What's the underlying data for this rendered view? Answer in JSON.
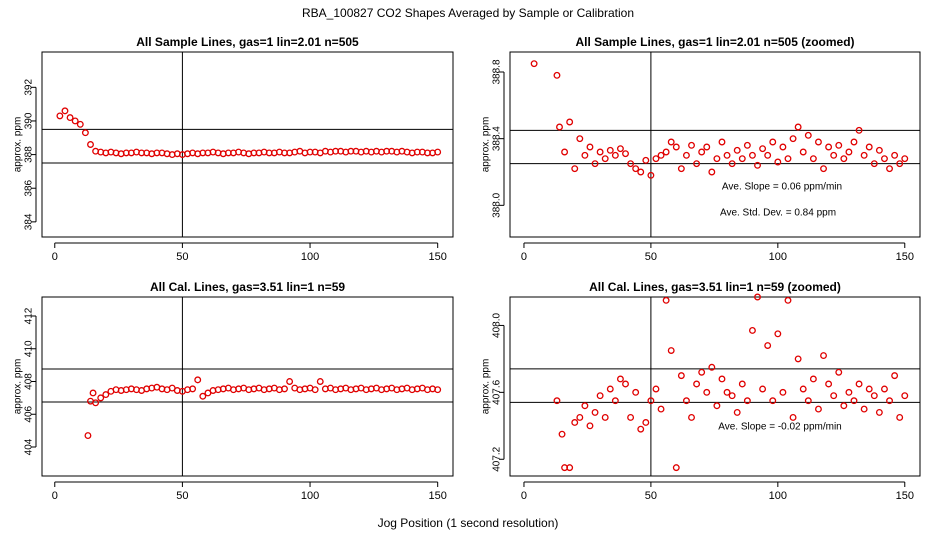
{
  "page": {
    "title": "RBA_100827  CO2 Shapes Averaged by Sample or Calibration",
    "xlabel": "Jog Position (1 second resolution)"
  },
  "chart_data": [
    {
      "type": "scatter",
      "title": "All Sample Lines, gas=1 lin=2.01 n=505",
      "ylabel": "approx. ppm",
      "color": "#e00000",
      "xlim": [
        -5,
        156
      ],
      "ylim": [
        383.1,
        394.1
      ],
      "xticks": [
        0,
        50,
        100,
        150
      ],
      "yticks": [
        384,
        386,
        388,
        390,
        392
      ],
      "hlines": [
        389.5,
        387.5
      ],
      "vlines": [
        50
      ],
      "annotations": [],
      "x": [
        2,
        4,
        6,
        8,
        10,
        12,
        14,
        16,
        18,
        20,
        22,
        24,
        26,
        28,
        30,
        32,
        34,
        36,
        38,
        40,
        42,
        44,
        46,
        48,
        50,
        52,
        54,
        56,
        58,
        60,
        62,
        64,
        66,
        68,
        70,
        72,
        74,
        76,
        78,
        80,
        82,
        84,
        86,
        88,
        90,
        92,
        94,
        96,
        98,
        100,
        102,
        104,
        106,
        108,
        110,
        112,
        114,
        116,
        118,
        120,
        122,
        124,
        126,
        128,
        130,
        132,
        134,
        136,
        138,
        140,
        142,
        144,
        146,
        148,
        150
      ],
      "values": [
        390.3,
        390.6,
        390.2,
        390.0,
        389.8,
        389.3,
        388.6,
        388.2,
        388.15,
        388.1,
        388.15,
        388.1,
        388.05,
        388.1,
        388.1,
        388.15,
        388.1,
        388.1,
        388.05,
        388.1,
        388.1,
        388.05,
        388.0,
        388.05,
        388.0,
        388.05,
        388.1,
        388.05,
        388.1,
        388.1,
        388.15,
        388.1,
        388.05,
        388.1,
        388.1,
        388.15,
        388.1,
        388.05,
        388.1,
        388.1,
        388.15,
        388.1,
        388.1,
        388.15,
        388.1,
        388.1,
        388.15,
        388.2,
        388.1,
        388.15,
        388.15,
        388.1,
        388.2,
        388.15,
        388.2,
        388.2,
        388.15,
        388.2,
        388.2,
        388.15,
        388.2,
        388.15,
        388.2,
        388.15,
        388.2,
        388.2,
        388.15,
        388.2,
        388.15,
        388.1,
        388.15,
        388.15,
        388.1,
        388.1,
        388.15
      ]
    },
    {
      "type": "scatter",
      "title": "All Sample Lines, gas=1 lin=2.01 n=505 (zoomed)",
      "ylabel": "approx. ppm",
      "color": "#e00000",
      "xlim": [
        -5.5,
        156
      ],
      "ylim": [
        387.81,
        388.92
      ],
      "xticks": [
        0,
        50,
        100,
        150
      ],
      "yticks": [
        {
          "value": 388,
          "label": "388.0"
        },
        388.4,
        388.8
      ],
      "hlines": [
        388.45,
        388.25
      ],
      "vlines": [
        50
      ],
      "annotations": [
        "Ave. Slope =  0.06  ppm/min",
        "Ave. Std. Dev. =  0.84  ppm"
      ],
      "x": [
        4,
        13,
        14,
        16,
        18,
        20,
        22,
        24,
        26,
        28,
        30,
        32,
        34,
        36,
        38,
        40,
        42,
        44,
        46,
        48,
        50,
        52,
        54,
        56,
        58,
        60,
        62,
        64,
        66,
        68,
        70,
        72,
        74,
        76,
        78,
        80,
        82,
        84,
        86,
        88,
        90,
        92,
        94,
        96,
        98,
        100,
        102,
        104,
        106,
        108,
        110,
        112,
        114,
        116,
        118,
        120,
        122,
        124,
        126,
        128,
        130,
        132,
        134,
        136,
        138,
        140,
        142,
        144,
        146,
        148,
        150
      ],
      "values": [
        388.85,
        388.78,
        388.47,
        388.32,
        388.5,
        388.22,
        388.4,
        388.3,
        388.35,
        388.25,
        388.32,
        388.28,
        388.33,
        388.3,
        388.34,
        388.31,
        388.25,
        388.22,
        388.2,
        388.27,
        388.18,
        388.28,
        388.3,
        388.32,
        388.38,
        388.35,
        388.22,
        388.3,
        388.36,
        388.25,
        388.32,
        388.35,
        388.2,
        388.28,
        388.38,
        388.3,
        388.25,
        388.33,
        388.28,
        388.36,
        388.3,
        388.24,
        388.34,
        388.3,
        388.38,
        388.26,
        388.35,
        388.28,
        388.4,
        388.47,
        388.32,
        388.42,
        388.28,
        388.38,
        388.22,
        388.35,
        388.3,
        388.36,
        388.28,
        388.32,
        388.38,
        388.45,
        388.3,
        388.35,
        388.25,
        388.33,
        388.28,
        388.22,
        388.3,
        388.25,
        388.28
      ]
    },
    {
      "type": "scatter",
      "title": "All Cal. Lines, gas=3.51 lin=1 n=59",
      "ylabel": "approx. ppm",
      "color": "#e00000",
      "xlim": [
        -5,
        156
      ],
      "ylim": [
        402.23,
        413.16
      ],
      "xticks": [
        0,
        50,
        100,
        150
      ],
      "yticks": [
        404,
        406,
        408,
        410,
        412
      ],
      "hlines": [
        408.76,
        406.75
      ],
      "vlines": [
        50
      ],
      "annotations": [],
      "x": [
        13,
        14,
        15,
        16,
        18,
        20,
        22,
        24,
        26,
        28,
        30,
        32,
        34,
        36,
        38,
        40,
        42,
        44,
        46,
        48,
        50,
        52,
        54,
        56,
        58,
        60,
        62,
        64,
        66,
        68,
        70,
        72,
        74,
        76,
        78,
        80,
        82,
        84,
        86,
        88,
        90,
        92,
        94,
        96,
        98,
        100,
        102,
        104,
        106,
        108,
        110,
        112,
        114,
        116,
        118,
        120,
        122,
        124,
        126,
        128,
        130,
        132,
        134,
        136,
        138,
        140,
        142,
        144,
        146,
        148,
        150
      ],
      "values": [
        404.7,
        406.8,
        407.3,
        406.7,
        407.0,
        407.2,
        407.4,
        407.5,
        407.45,
        407.5,
        407.55,
        407.5,
        407.45,
        407.55,
        407.6,
        407.65,
        407.55,
        407.5,
        407.6,
        407.45,
        407.4,
        407.5,
        407.55,
        408.1,
        407.1,
        407.3,
        407.45,
        407.5,
        407.55,
        407.6,
        407.5,
        407.55,
        407.6,
        407.5,
        407.55,
        407.6,
        407.5,
        407.55,
        407.6,
        407.5,
        407.55,
        408.0,
        407.6,
        407.5,
        407.55,
        407.6,
        407.5,
        408.0,
        407.55,
        407.6,
        407.5,
        407.55,
        407.6,
        407.5,
        407.55,
        407.6,
        407.5,
        407.55,
        407.6,
        407.5,
        407.55,
        407.6,
        407.5,
        407.55,
        407.6,
        407.5,
        407.55,
        407.6,
        407.5,
        407.55,
        407.5
      ]
    },
    {
      "type": "scatter",
      "title": "All Cal. Lines, gas=3.51 lin=1 n=59 (zoomed)",
      "ylabel": "approx. ppm",
      "color": "#e00000",
      "xlim": [
        -5.5,
        156
      ],
      "ylim": [
        407.1,
        408.17
      ],
      "xticks": [
        0,
        50,
        100,
        150
      ],
      "yticks": [
        407.2,
        407.6,
        {
          "value": 408,
          "label": "408.0"
        }
      ],
      "hlines": [
        407.74,
        407.54
      ],
      "vlines": [
        50
      ],
      "annotations": [
        "Ave. Slope =  -0.02  ppm/min"
      ],
      "x": [
        13,
        15,
        16,
        18,
        20,
        22,
        24,
        26,
        28,
        30,
        32,
        34,
        36,
        38,
        40,
        42,
        44,
        46,
        48,
        50,
        52,
        54,
        56,
        58,
        60,
        62,
        64,
        66,
        68,
        70,
        72,
        74,
        76,
        78,
        80,
        82,
        84,
        86,
        88,
        90,
        92,
        94,
        96,
        98,
        100,
        102,
        104,
        106,
        108,
        110,
        112,
        114,
        116,
        118,
        120,
        122,
        124,
        126,
        128,
        130,
        132,
        134,
        136,
        138,
        140,
        142,
        144,
        146,
        148,
        150
      ],
      "values": [
        407.55,
        407.35,
        407.15,
        407.15,
        407.42,
        407.45,
        407.52,
        407.4,
        407.48,
        407.58,
        407.45,
        407.62,
        407.55,
        407.68,
        407.65,
        407.45,
        407.6,
        407.38,
        407.42,
        407.55,
        407.62,
        407.5,
        408.15,
        407.85,
        407.15,
        407.7,
        407.55,
        407.45,
        407.65,
        407.72,
        407.6,
        407.75,
        407.52,
        407.68,
        407.6,
        407.58,
        407.48,
        407.65,
        407.55,
        407.97,
        408.17,
        407.62,
        407.88,
        407.55,
        407.95,
        407.6,
        408.15,
        407.45,
        407.8,
        407.62,
        407.55,
        407.68,
        407.5,
        407.82,
        407.65,
        407.58,
        407.72,
        407.52,
        407.6,
        407.55,
        407.65,
        407.5,
        407.62,
        407.58,
        407.48,
        407.62,
        407.55,
        407.7,
        407.45,
        407.58
      ]
    }
  ]
}
